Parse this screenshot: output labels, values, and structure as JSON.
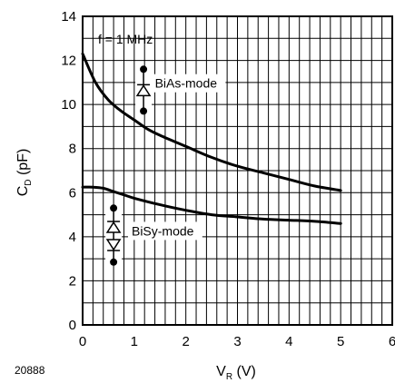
{
  "figure_id": "20888",
  "chart_data": {
    "type": "line",
    "xlabel": {
      "main": "V",
      "sub": "R",
      "unit": "(V)"
    },
    "ylabel": {
      "main": "C",
      "sub": "D",
      "unit": "(pF)"
    },
    "xlim": [
      0,
      6
    ],
    "ylim": [
      0,
      14
    ],
    "x_ticks": [
      0,
      1,
      2,
      3,
      4,
      5,
      6
    ],
    "y_ticks": [
      0,
      2,
      4,
      6,
      8,
      10,
      12,
      14
    ],
    "x_minor_step": 0.2,
    "y_minor_step": 1,
    "grid": true,
    "annotation": "f = 1 MHz",
    "series": [
      {
        "name": "BiAs-mode",
        "x": [
          0,
          0.25,
          0.5,
          0.75,
          1.0,
          1.25,
          1.5,
          2.0,
          2.5,
          3.0,
          3.5,
          4.0,
          4.5,
          5.0
        ],
        "y": [
          12.3,
          11.0,
          10.2,
          9.7,
          9.3,
          8.9,
          8.6,
          8.1,
          7.6,
          7.2,
          6.9,
          6.6,
          6.3,
          6.1
        ]
      },
      {
        "name": "BiSy-mode",
        "x": [
          0,
          0.2,
          0.4,
          0.6,
          0.8,
          1.0,
          1.5,
          2.0,
          2.5,
          3.0,
          3.5,
          4.0,
          4.5,
          5.0
        ],
        "y": [
          6.25,
          6.25,
          6.2,
          6.05,
          5.9,
          5.75,
          5.45,
          5.2,
          5.0,
          4.9,
          4.8,
          4.75,
          4.7,
          4.6
        ]
      }
    ],
    "series_labels": [
      {
        "series": "BiAs-mode",
        "x": 1.4,
        "y": 10.8
      },
      {
        "series": "BiSy-mode",
        "x": 0.95,
        "y": 4.1
      }
    ],
    "symbols": [
      {
        "kind": "diode-single",
        "x": 1.18,
        "y_top": 11.6,
        "y_bottom": 9.7
      },
      {
        "kind": "diode-antiparallel",
        "x": 0.6,
        "y_top": 5.3,
        "y_bottom": 2.85
      }
    ]
  }
}
